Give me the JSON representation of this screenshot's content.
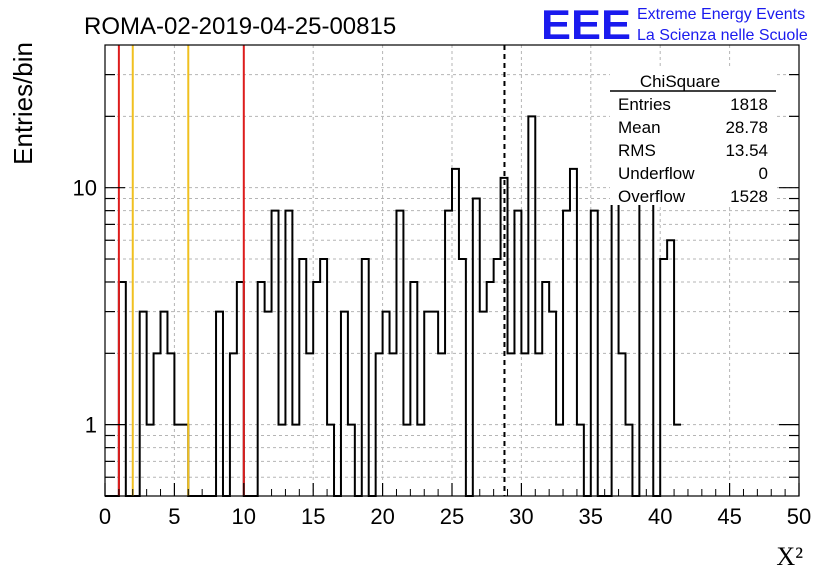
{
  "chart_data": {
    "type": "bar",
    "title": "ROMA-02-2019-04-25-00815",
    "ylabel": "Entries/bin",
    "xlabel": "X²",
    "xlim": [
      0,
      50
    ],
    "ylim": [
      0.5,
      40
    ],
    "yscale": "log",
    "grid": true,
    "bin_width": 0.5,
    "x_tick_labels": [
      "0",
      "5",
      "10",
      "15",
      "20",
      "25",
      "30",
      "35",
      "40",
      "45",
      "50"
    ],
    "y_tick_labels": [
      {
        "value": 1,
        "label": "1"
      },
      {
        "value": 10,
        "label": "10"
      }
    ],
    "values": [
      0,
      0,
      4,
      0,
      0,
      3,
      1,
      2,
      3,
      2,
      1,
      1,
      0,
      0,
      0,
      0,
      3,
      0,
      2,
      4,
      0,
      0,
      4,
      3,
      8,
      1,
      8,
      1,
      5,
      2,
      4,
      5,
      1,
      0,
      3,
      1,
      0,
      5,
      0,
      2,
      3,
      2,
      8,
      1,
      4,
      1,
      3,
      3,
      2,
      8,
      12,
      5,
      0,
      9,
      3,
      4,
      5,
      11,
      2,
      8,
      2,
      20,
      2,
      4,
      3,
      1,
      8,
      12,
      1,
      0,
      8,
      0,
      0,
      10,
      2,
      1,
      0,
      9,
      10,
      0,
      5,
      6,
      1
    ],
    "reference_lines": [
      {
        "x": 1.0,
        "color": "#dd1c1c",
        "style": "solid"
      },
      {
        "x": 2.0,
        "color": "#f0c020",
        "style": "solid"
      },
      {
        "x": 6.0,
        "color": "#f0c020",
        "style": "solid"
      },
      {
        "x": 10.0,
        "color": "#dd1c1c",
        "style": "solid"
      },
      {
        "x": 28.78,
        "color": "#000000",
        "style": "dashed"
      }
    ],
    "stats_box": {
      "title": "ChiSquare",
      "rows": [
        {
          "label": "Entries",
          "value": "1818"
        },
        {
          "label": "Mean",
          "value": "28.78"
        },
        {
          "label": "RMS",
          "value": "13.54"
        },
        {
          "label": "Underflow",
          "value": "0"
        },
        {
          "label": "Overflow",
          "value": "1528"
        }
      ]
    },
    "logo": {
      "text": "EEE",
      "line1": "Extreme Energy Events",
      "line2": "La Scienza nelle Scuole",
      "color": "#1a1aee"
    }
  }
}
